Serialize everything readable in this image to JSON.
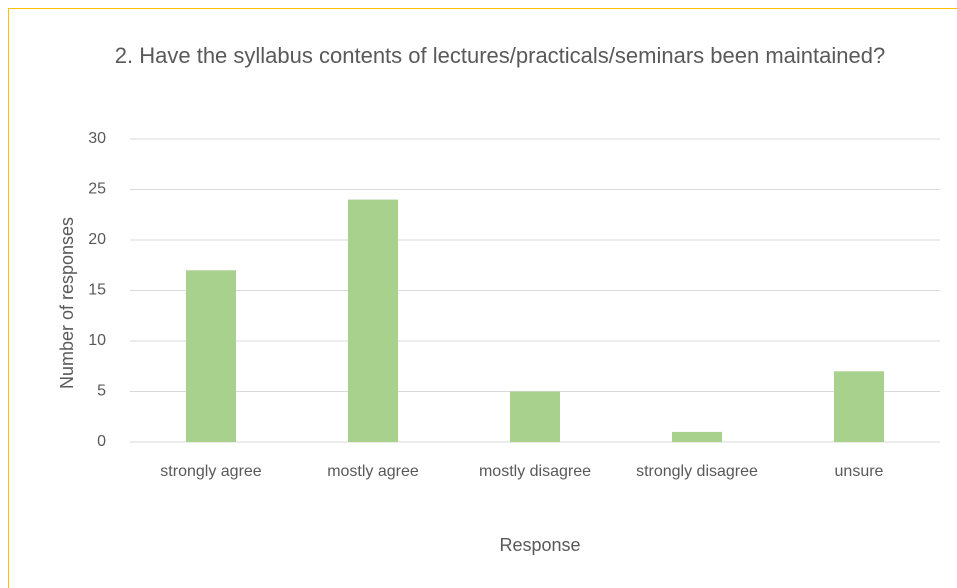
{
  "chart_data": {
    "type": "bar",
    "title": "2. Have the syllabus contents of lectures/practicals/seminars been maintained?",
    "categories": [
      "strongly agree",
      "mostly agree",
      "mostly disagree",
      "strongly disagree",
      "unsure"
    ],
    "values": [
      17,
      24,
      5,
      1,
      7
    ],
    "color": "#a9d18e",
    "xlabel": "Response",
    "ylabel": "Number of responses",
    "ylim": [
      0,
      30
    ],
    "yticks": [
      0,
      5,
      10,
      15,
      20,
      25,
      30
    ],
    "grid": true
  }
}
